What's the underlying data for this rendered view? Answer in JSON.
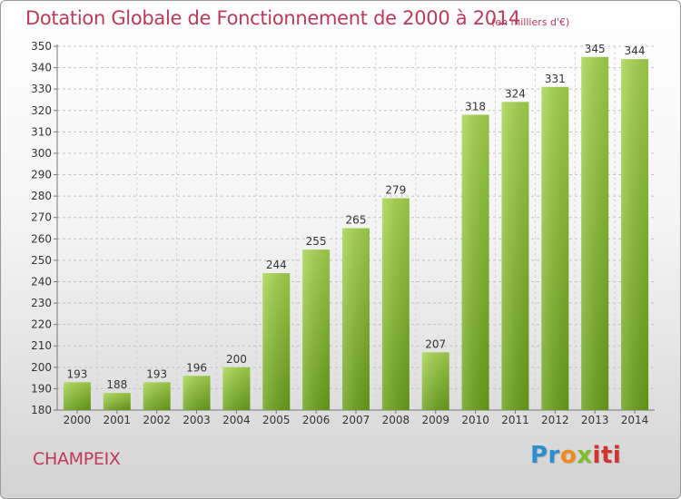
{
  "header": {
    "title": "Dotation Globale de Fonctionnement de 2000 à 2014",
    "subtitle": "(en milliers d'€)"
  },
  "footer": {
    "commune": "CHAMPEIX",
    "brand": {
      "part0": "Pr",
      "part1": "o",
      "part2": "x",
      "part3": "iti"
    }
  },
  "colors": {
    "bar_light": "#a6d64e",
    "bar_dark": "#6aa119",
    "title": "#c0395a",
    "grid": "#bfbfbf"
  },
  "chart_data": {
    "type": "bar",
    "title": "Dotation Globale de Fonctionnement de 2000 à 2014",
    "subtitle": "(en milliers d'€)",
    "categories": [
      "2000",
      "2001",
      "2002",
      "2003",
      "2004",
      "2005",
      "2006",
      "2007",
      "2008",
      "2009",
      "2010",
      "2011",
      "2012",
      "2013",
      "2014"
    ],
    "values": [
      193,
      188,
      193,
      196,
      200,
      244,
      255,
      265,
      279,
      207,
      318,
      324,
      331,
      345,
      344
    ],
    "data_labels": [
      "193",
      "188",
      "193",
      "196",
      "200",
      "244",
      "255",
      "265",
      "279",
      "207",
      "318",
      "324",
      "331",
      "345",
      "344"
    ],
    "ylim": [
      180,
      350
    ],
    "yticks": [
      "180",
      "190",
      "200",
      "210",
      "220",
      "230",
      "240",
      "250",
      "260",
      "270",
      "280",
      "290",
      "300",
      "310",
      "320",
      "330",
      "340",
      "350"
    ],
    "grid": true,
    "xlabel": "",
    "ylabel": ""
  }
}
